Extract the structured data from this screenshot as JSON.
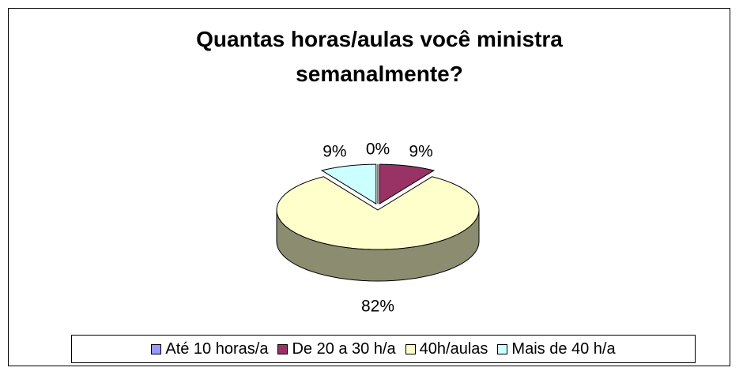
{
  "chart_data": {
    "type": "pie",
    "style": "3d-exploded",
    "title": "Quantas horas/aulas você ministra semanalmente?",
    "categories": [
      "Até 10 horas/a",
      "De 20 a 30 h/a",
      "40h/aulas",
      "Mais de 40 h/a"
    ],
    "values": [
      0,
      9,
      82,
      9
    ],
    "value_labels": [
      "0%",
      "9%",
      "82%",
      "9%"
    ],
    "colors": [
      "#9999ff",
      "#993366",
      "#ffffcc",
      "#ccffff"
    ],
    "legend": "bottom"
  }
}
